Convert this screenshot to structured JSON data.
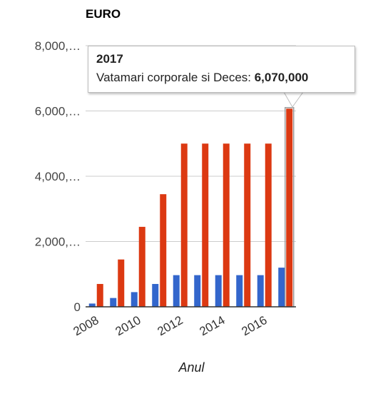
{
  "chart_data": {
    "type": "bar",
    "title": "EURO",
    "xlabel": "Anul",
    "ylabel": "",
    "ylim": [
      0,
      8000000
    ],
    "yticks": [
      {
        "value": 0,
        "label": "0"
      },
      {
        "value": 2000000,
        "label": "2,000,…"
      },
      {
        "value": 4000000,
        "label": "4,000,…"
      },
      {
        "value": 6000000,
        "label": "6,000,…"
      },
      {
        "value": 8000000,
        "label": "8,000,…"
      }
    ],
    "categories": [
      "2008",
      "2009",
      "2010",
      "2011",
      "2012",
      "2013",
      "2014",
      "2015",
      "2016",
      "2017"
    ],
    "xtick_labels": [
      "2008",
      "2010",
      "2012",
      "2014",
      "2016"
    ],
    "series": [
      {
        "color": "#3366cc",
        "values": [
          100000,
          270000,
          450000,
          700000,
          970000,
          970000,
          970000,
          970000,
          970000,
          1200000
        ]
      },
      {
        "name": "Vatamari corporale si Deces",
        "color": "#dc3912",
        "values": [
          700000,
          1450000,
          2450000,
          3450000,
          5000000,
          5000000,
          5000000,
          5000000,
          5000000,
          6070000
        ]
      }
    ],
    "grid": true,
    "legend": "none",
    "tooltip": {
      "year": "2017",
      "series_label": "Vatamari corporale si Deces: ",
      "value": "6,070,000"
    }
  }
}
